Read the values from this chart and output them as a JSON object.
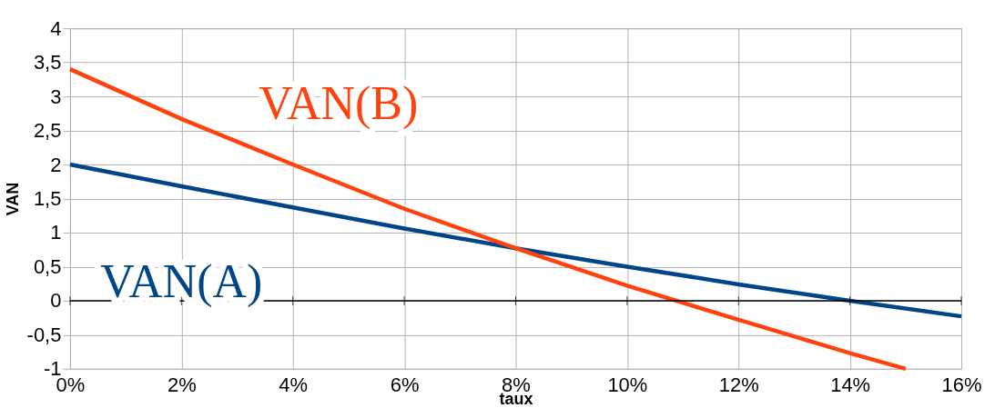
{
  "chart_data": {
    "type": "line",
    "xlabel": "taux",
    "ylabel": "VAN",
    "series": [
      {
        "name": "VAN(A)",
        "color": "#004586",
        "x": [
          0,
          2,
          4,
          6,
          8,
          10,
          12,
          14,
          16
        ],
        "values": [
          2,
          1.68,
          1.37,
          1.06,
          0.77,
          0.5,
          0.24,
          0,
          -0.23
        ]
      },
      {
        "name": "VAN(B)",
        "color": "#ff420e",
        "x": [
          0,
          2,
          4,
          6,
          8,
          10,
          12,
          14,
          15
        ],
        "values": [
          3.4,
          2.67,
          2,
          1.35,
          0.77,
          0.22,
          -0.28,
          -0.77,
          -1
        ]
      }
    ],
    "xlim": [
      0,
      16
    ],
    "xticks": [
      {
        "value": 0,
        "label": "0%"
      },
      {
        "value": 2,
        "label": "2%"
      },
      {
        "value": 4,
        "label": "4%"
      },
      {
        "value": 6,
        "label": "6%"
      },
      {
        "value": 8,
        "label": "8%"
      },
      {
        "value": 10,
        "label": "10%"
      },
      {
        "value": 12,
        "label": "12%"
      },
      {
        "value": 14,
        "label": "14%"
      },
      {
        "value": 16,
        "label": "16%"
      }
    ],
    "ylim": [
      -1,
      4
    ],
    "yticks": [
      -1,
      {
        "value": -0.5,
        "label": "-0,5"
      },
      0,
      {
        "value": 0.5,
        "label": "0,5"
      },
      1,
      {
        "value": 1.5,
        "label": "1,5"
      },
      2,
      {
        "value": 2.5,
        "label": "2,5"
      },
      3,
      {
        "value": 3.5,
        "label": "3,5"
      },
      4
    ],
    "ref_lines": [
      {
        "axis": "y",
        "value": 0,
        "color": "#000000"
      }
    ],
    "grid": true,
    "legend": false,
    "marker": "none",
    "line_style": "solid"
  }
}
